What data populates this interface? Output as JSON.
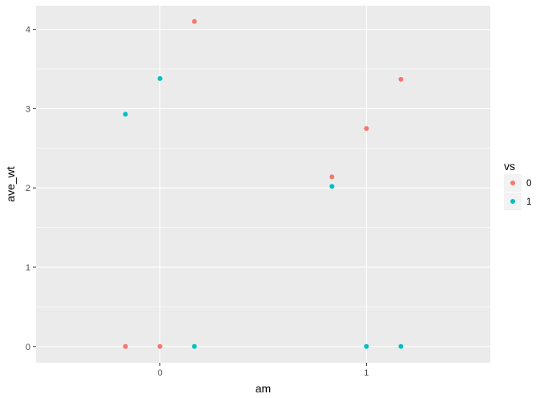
{
  "chart_data": {
    "type": "scatter",
    "title": "",
    "xlabel": "am",
    "ylabel": "ave_wt",
    "xlim": [
      -0.6,
      1.6
    ],
    "ylim": [
      -0.205,
      4.3
    ],
    "x_ticks": [
      0,
      1
    ],
    "x_tick_labels": [
      "0",
      "1"
    ],
    "y_ticks": [
      0,
      1,
      2,
      3,
      4
    ],
    "y_tick_labels": [
      "0",
      "1",
      "2",
      "3",
      "4"
    ],
    "grid": true,
    "panel_background": "#ebebeb",
    "grid_color": "#ffffff",
    "legend": {
      "title": "vs",
      "position": "right",
      "entries": [
        {
          "label": "0",
          "color": "#f8766d"
        },
        {
          "label": "1",
          "color": "#00bfc4"
        }
      ]
    },
    "series": [
      {
        "name": "0",
        "color": "#f8766d",
        "points": [
          {
            "x": -0.167,
            "y": 0
          },
          {
            "x": 0,
            "y": 0
          },
          {
            "x": 0.167,
            "y": 4.1
          },
          {
            "x": 0.833,
            "y": 2.14
          },
          {
            "x": 1,
            "y": 2.75
          },
          {
            "x": 1.167,
            "y": 3.37
          }
        ]
      },
      {
        "name": "1",
        "color": "#00bfc4",
        "points": [
          {
            "x": -0.167,
            "y": 2.93
          },
          {
            "x": 0,
            "y": 3.38
          },
          {
            "x": 0.167,
            "y": 0
          },
          {
            "x": 0.833,
            "y": 2.02
          },
          {
            "x": 1,
            "y": 0
          },
          {
            "x": 1.167,
            "y": 0
          }
        ]
      }
    ]
  }
}
